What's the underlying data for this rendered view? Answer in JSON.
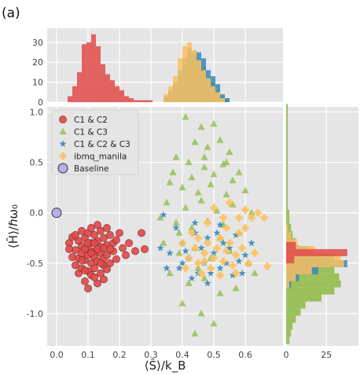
{
  "panel_label": "(a)",
  "chart_data": {
    "type": "scatter",
    "xlabel": "⟨Ŝ⟩/k_B",
    "ylabel": "⟨Ĥ⟩/ℏω₀",
    "xlim": [
      -0.03,
      0.72
    ],
    "ylim": [
      -1.32,
      1.05
    ],
    "x_ticks": [
      "0.0",
      "0.1",
      "0.2",
      "0.3",
      "0.4",
      "0.5",
      "0.6"
    ],
    "y_ticks": [
      "1.0",
      "0.5",
      "0.0",
      "-0.5",
      "-1.0"
    ],
    "grid": true,
    "legend_placement": "top-left",
    "series": [
      {
        "name": "C1 & C2",
        "marker": "circle",
        "color": "#E24A4A",
        "points": [
          [
            0.04,
            -0.3
          ],
          [
            0.05,
            -0.44
          ],
          [
            0.05,
            -0.24
          ],
          [
            0.06,
            -0.37
          ],
          [
            0.06,
            -0.52
          ],
          [
            0.07,
            -0.28
          ],
          [
            0.07,
            -0.45
          ],
          [
            0.07,
            -0.6
          ],
          [
            0.08,
            -0.18
          ],
          [
            0.08,
            -0.33
          ],
          [
            0.08,
            -0.4
          ],
          [
            0.08,
            -0.55
          ],
          [
            0.09,
            -0.25
          ],
          [
            0.09,
            -0.47
          ],
          [
            0.09,
            -0.68
          ],
          [
            0.1,
            -0.2
          ],
          [
            0.1,
            -0.35
          ],
          [
            0.1,
            -0.42
          ],
          [
            0.1,
            -0.58
          ],
          [
            0.1,
            -0.75
          ],
          [
            0.11,
            -0.15
          ],
          [
            0.11,
            -0.3
          ],
          [
            0.11,
            -0.5
          ],
          [
            0.11,
            -0.62
          ],
          [
            0.12,
            -0.22
          ],
          [
            0.12,
            -0.38
          ],
          [
            0.12,
            -0.44
          ],
          [
            0.12,
            -0.55
          ],
          [
            0.13,
            -0.12
          ],
          [
            0.13,
            -0.28
          ],
          [
            0.13,
            -0.48
          ],
          [
            0.13,
            -0.7
          ],
          [
            0.14,
            -0.18
          ],
          [
            0.14,
            -0.34
          ],
          [
            0.14,
            -0.4
          ],
          [
            0.14,
            -0.6
          ],
          [
            0.15,
            -0.25
          ],
          [
            0.15,
            -0.45
          ],
          [
            0.15,
            -0.52
          ],
          [
            0.15,
            -0.66
          ],
          [
            0.16,
            -0.15
          ],
          [
            0.16,
            -0.32
          ],
          [
            0.16,
            -0.42
          ],
          [
            0.17,
            -0.22
          ],
          [
            0.17,
            -0.5
          ],
          [
            0.18,
            -0.3
          ],
          [
            0.18,
            -0.38
          ],
          [
            0.19,
            -0.27
          ],
          [
            0.19,
            -0.46
          ],
          [
            0.2,
            -0.2
          ],
          [
            0.21,
            -0.35
          ],
          [
            0.22,
            -0.42
          ],
          [
            0.23,
            -0.3
          ],
          [
            0.25,
            -0.38
          ],
          [
            0.27,
            -0.2
          ],
          [
            0.28,
            -0.36
          ],
          [
            0.04,
            -0.36
          ],
          [
            0.06,
            -0.22
          ],
          [
            0.09,
            -0.36
          ],
          [
            0.12,
            -0.64
          ],
          [
            0.14,
            -0.5
          ],
          [
            0.17,
            -0.36
          ],
          [
            0.11,
            -0.4
          ],
          [
            0.13,
            -0.36
          ],
          [
            0.08,
            -0.47
          ],
          [
            0.1,
            -0.3
          ],
          [
            0.16,
            -0.56
          ],
          [
            0.12,
            -0.3
          ],
          [
            0.15,
            -0.35
          ],
          [
            0.09,
            -0.57
          ]
        ]
      },
      {
        "name": "C1 & C3",
        "marker": "triangle",
        "color": "#8EBA42",
        "points": [
          [
            0.41,
            0.95
          ],
          [
            0.46,
            0.85
          ],
          [
            0.5,
            0.88
          ],
          [
            0.44,
            0.7
          ],
          [
            0.48,
            0.65
          ],
          [
            0.52,
            0.72
          ],
          [
            0.55,
            0.6
          ],
          [
            0.38,
            0.55
          ],
          [
            0.42,
            0.5
          ],
          [
            0.47,
            0.45
          ],
          [
            0.53,
            0.48
          ],
          [
            0.58,
            0.4
          ],
          [
            0.36,
            0.3
          ],
          [
            0.4,
            0.25
          ],
          [
            0.45,
            0.2
          ],
          [
            0.49,
            0.28
          ],
          [
            0.54,
            0.18
          ],
          [
            0.6,
            0.22
          ],
          [
            0.35,
            0.1
          ],
          [
            0.41,
            0.05
          ],
          [
            0.46,
            0.12
          ],
          [
            0.51,
            0.02
          ],
          [
            0.56,
            0.08
          ],
          [
            0.62,
            0.0
          ],
          [
            0.33,
            -0.05
          ],
          [
            0.38,
            -0.1
          ],
          [
            0.43,
            -0.15
          ],
          [
            0.48,
            -0.08
          ],
          [
            0.53,
            -0.12
          ],
          [
            0.58,
            -0.2
          ],
          [
            0.34,
            -0.3
          ],
          [
            0.39,
            -0.4
          ],
          [
            0.44,
            -0.35
          ],
          [
            0.49,
            -0.45
          ],
          [
            0.55,
            -0.38
          ],
          [
            0.61,
            -0.5
          ],
          [
            0.36,
            -0.6
          ],
          [
            0.42,
            -0.7
          ],
          [
            0.47,
            -0.65
          ],
          [
            0.52,
            -0.8
          ],
          [
            0.4,
            -0.9
          ],
          [
            0.46,
            -1.0
          ],
          [
            0.44,
            -1.2
          ],
          [
            0.5,
            -1.1
          ],
          [
            0.57,
            -0.75
          ],
          [
            0.63,
            -0.6
          ],
          [
            0.37,
            0.4
          ],
          [
            0.43,
            0.35
          ],
          [
            0.5,
            0.38
          ],
          [
            0.56,
            0.32
          ],
          [
            0.45,
            -0.55
          ],
          [
            0.52,
            -0.25
          ],
          [
            0.47,
            0.55
          ],
          [
            0.54,
            0.5
          ],
          [
            0.39,
            -0.2
          ]
        ]
      },
      {
        "name": "C1 & C2 & C3",
        "marker": "star",
        "color": "#348ABD",
        "points": [
          [
            0.34,
            -0.02
          ],
          [
            0.38,
            -0.15
          ],
          [
            0.4,
            -0.3
          ],
          [
            0.42,
            -0.45
          ],
          [
            0.45,
            -0.6
          ],
          [
            0.48,
            -0.25
          ],
          [
            0.5,
            -0.4
          ],
          [
            0.52,
            -0.55
          ],
          [
            0.55,
            -0.35
          ],
          [
            0.58,
            -0.48
          ],
          [
            0.36,
            -0.4
          ],
          [
            0.44,
            -0.2
          ],
          [
            0.47,
            -0.5
          ],
          [
            0.53,
            -0.3
          ],
          [
            0.56,
            -0.62
          ],
          [
            0.6,
            -0.42
          ],
          [
            0.39,
            -0.55
          ],
          [
            0.46,
            -0.35
          ],
          [
            0.51,
            -0.2
          ],
          [
            0.54,
            -0.5
          ],
          [
            0.43,
            -0.65
          ],
          [
            0.49,
            -0.6
          ],
          [
            0.62,
            -0.3
          ],
          [
            0.41,
            -0.38
          ],
          [
            0.57,
            -0.22
          ],
          [
            0.33,
            -0.35
          ],
          [
            0.35,
            -0.55
          ],
          [
            0.59,
            -0.6
          ],
          [
            0.48,
            -0.7
          ],
          [
            0.44,
            -0.1
          ],
          [
            0.52,
            -0.12
          ],
          [
            0.4,
            -0.5
          ]
        ]
      },
      {
        "name": "ibmq_manila",
        "marker": "plus",
        "color": "#FBC15E",
        "points": [
          [
            0.4,
            -0.3
          ],
          [
            0.42,
            -0.45
          ],
          [
            0.44,
            -0.35
          ],
          [
            0.45,
            -0.5
          ],
          [
            0.47,
            -0.4
          ],
          [
            0.48,
            -0.3
          ],
          [
            0.49,
            -0.55
          ],
          [
            0.5,
            -0.45
          ],
          [
            0.51,
            -0.35
          ],
          [
            0.52,
            -0.25
          ],
          [
            0.53,
            -0.48
          ],
          [
            0.54,
            -0.38
          ],
          [
            0.55,
            -0.3
          ],
          [
            0.56,
            -0.52
          ],
          [
            0.57,
            -0.42
          ],
          [
            0.58,
            -0.2
          ],
          [
            0.59,
            -0.35
          ],
          [
            0.6,
            -0.15
          ],
          [
            0.62,
            -0.05
          ],
          [
            0.64,
            0.0
          ],
          [
            0.66,
            -0.05
          ],
          [
            0.67,
            -0.53
          ],
          [
            0.43,
            -0.2
          ],
          [
            0.46,
            -0.6
          ],
          [
            0.48,
            -0.1
          ],
          [
            0.5,
            0.05
          ],
          [
            0.53,
            -0.05
          ],
          [
            0.55,
            0.1
          ],
          [
            0.61,
            -0.5
          ],
          [
            0.63,
            -0.4
          ],
          [
            0.41,
            -0.55
          ],
          [
            0.45,
            -0.25
          ],
          [
            0.52,
            -0.62
          ],
          [
            0.57,
            -0.6
          ],
          [
            0.47,
            -0.48
          ],
          [
            0.54,
            -0.15
          ],
          [
            0.58,
            -0.05
          ],
          [
            0.6,
            0.03
          ]
        ]
      },
      {
        "name": "Baseline",
        "marker": "circle",
        "color": "#B5A7EB",
        "points": [
          [
            0.0,
            0.0
          ]
        ]
      }
    ],
    "top_histogram": {
      "ylim": [
        0,
        37
      ],
      "y_ticks": [
        "0",
        "10",
        "20",
        "30"
      ],
      "bin_width": 0.015,
      "series": [
        {
          "name": "C1 & C2",
          "color": "#E24A4A",
          "start": 0.035,
          "counts": [
            3,
            8,
            15,
            29,
            30,
            34,
            28,
            19,
            14,
            11,
            8,
            6,
            3,
            2,
            1,
            1,
            1,
            1
          ]
        },
        {
          "name": "C1 & C3",
          "color": "#8EBA42",
          "start": 0.34,
          "counts": [
            2,
            5,
            9,
            13,
            19,
            23,
            26,
            21,
            18,
            12,
            10,
            6,
            3,
            2
          ]
        },
        {
          "name": "C1 & C2 & C3",
          "color": "#348ABD",
          "start": 0.34,
          "counts": [
            3,
            6,
            10,
            16,
            22,
            27,
            24,
            25,
            22,
            16,
            13,
            9,
            4,
            2
          ]
        },
        {
          "name": "ibmq_manila",
          "color": "#FBC15E",
          "start": 0.34,
          "counts": [
            4,
            8,
            13,
            22,
            28,
            30,
            26,
            21,
            16,
            12,
            8,
            5,
            2
          ]
        }
      ]
    },
    "right_histogram": {
      "xlim": [
        0,
        45
      ],
      "x_ticks": [
        "0",
        "25"
      ],
      "bin_width": 0.07,
      "series": [
        {
          "name": "C1 & C3",
          "color": "#8EBA42",
          "start": -1.3,
          "counts": [
            2,
            3,
            4,
            6,
            9,
            12,
            22,
            30,
            34,
            33,
            30,
            24,
            16,
            8,
            6,
            4,
            3,
            2,
            2,
            1,
            1,
            1,
            1,
            1,
            1,
            1,
            1,
            1,
            1,
            1,
            1,
            1,
            1,
            1
          ]
        },
        {
          "name": "C1 & C2 & C3",
          "color": "#348ABD",
          "start": -0.75,
          "counts": [
            3,
            8,
            20,
            38,
            30,
            14,
            5,
            2
          ]
        },
        {
          "name": "ibmq_manila",
          "color": "#FBC15E",
          "start": -0.75,
          "counts": [
            2,
            6,
            16,
            36,
            34,
            18,
            7,
            3,
            1
          ]
        },
        {
          "name": "C1 & C2",
          "color": "#E24A4A",
          "start": -0.5,
          "counts": [
            5,
            38,
            6
          ]
        }
      ]
    }
  }
}
